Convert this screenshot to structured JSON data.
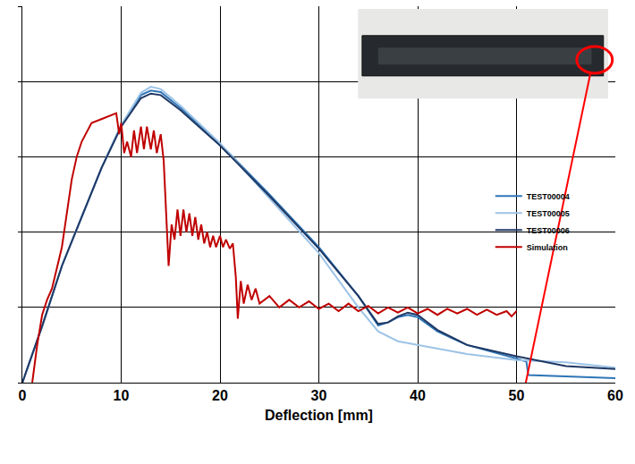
{
  "chart_data": {
    "type": "line",
    "x_label": "Deflection [mm]",
    "xlim": [
      0,
      60
    ],
    "xticks": [
      0,
      10,
      20,
      30,
      40,
      50,
      60
    ],
    "ylim": [
      0,
      5
    ],
    "yticks": [
      0,
      1,
      2,
      3,
      4,
      5
    ],
    "tick_labels": "x",
    "grid": true,
    "legend": "right",
    "series": [
      {
        "name": "TEST00004",
        "color": "#2e75b6",
        "x": [
          0,
          2,
          4,
          6,
          8,
          10,
          12,
          13,
          14,
          16,
          20,
          25,
          30,
          34,
          36,
          37,
          38,
          39,
          40,
          42,
          45,
          50,
          51,
          51.2,
          55,
          60
        ],
        "values": [
          0,
          0.75,
          1.55,
          2.2,
          2.85,
          3.42,
          3.82,
          3.88,
          3.86,
          3.65,
          3.17,
          2.5,
          1.8,
          1.15,
          0.76,
          0.8,
          0.87,
          0.9,
          0.87,
          0.68,
          0.5,
          0.32,
          0.28,
          0.1,
          0.08,
          0.06
        ]
      },
      {
        "name": "TEST00005",
        "color": "#9dc3e6",
        "x": [
          0,
          2,
          4,
          6,
          8,
          10,
          12,
          13,
          14,
          16,
          20,
          25,
          30,
          34,
          36,
          38,
          40,
          45,
          50,
          55,
          60
        ],
        "values": [
          0,
          0.75,
          1.55,
          2.2,
          2.85,
          3.42,
          3.85,
          3.93,
          3.9,
          3.68,
          3.18,
          2.45,
          1.72,
          1.0,
          0.68,
          0.55,
          0.5,
          0.38,
          0.3,
          0.27,
          0.2
        ]
      },
      {
        "name": "TEST00006",
        "color": "#1f3864",
        "x": [
          0,
          2,
          4,
          6,
          8,
          10,
          12,
          13,
          14,
          16,
          20,
          25,
          30,
          34,
          36,
          37,
          38,
          39,
          40,
          42,
          45,
          50,
          55,
          60
        ],
        "values": [
          0,
          0.75,
          1.55,
          2.2,
          2.85,
          3.4,
          3.78,
          3.84,
          3.82,
          3.62,
          3.15,
          2.48,
          1.78,
          1.15,
          0.78,
          0.8,
          0.88,
          0.93,
          0.9,
          0.7,
          0.5,
          0.35,
          0.22,
          0.18
        ]
      },
      {
        "name": "Simulation",
        "color": "#c00000",
        "x": [
          1,
          1.5,
          2,
          2.5,
          3,
          4,
          5,
          5.5,
          6,
          7,
          8,
          9,
          9.5,
          9.8,
          10,
          10.3,
          10.6,
          11,
          11.3,
          11.6,
          12,
          12.3,
          12.6,
          13,
          13.3,
          13.6,
          14,
          14.3,
          14.6,
          14.8,
          15.1,
          15.4,
          15.7,
          16,
          16.3,
          16.6,
          16.9,
          17.2,
          17.5,
          17.8,
          18.1,
          18.4,
          18.7,
          19,
          19.3,
          19.6,
          20,
          20.3,
          20.6,
          21,
          21.3,
          21.6,
          21.8,
          22.1,
          22.4,
          22.8,
          23.2,
          23.6,
          24,
          25,
          26,
          27,
          28,
          29,
          30,
          31,
          32,
          33,
          34,
          35,
          36,
          37,
          38,
          39,
          40,
          41,
          42,
          43,
          44,
          45,
          46,
          47,
          48,
          49,
          49.5,
          50
        ],
        "values": [
          0,
          0.5,
          0.9,
          1.1,
          1.25,
          1.8,
          2.7,
          3.0,
          3.2,
          3.45,
          3.5,
          3.55,
          3.58,
          3.3,
          3.45,
          3.05,
          3.2,
          3.0,
          3.35,
          3.05,
          3.4,
          3.1,
          3.4,
          3.1,
          3.35,
          3.05,
          3.3,
          2.95,
          2.1,
          1.55,
          2.1,
          1.9,
          2.3,
          1.95,
          2.3,
          2.0,
          2.25,
          1.95,
          2.2,
          1.9,
          2.1,
          1.85,
          2.0,
          1.8,
          1.95,
          1.8,
          1.95,
          1.8,
          1.9,
          1.78,
          1.85,
          1.4,
          0.85,
          1.35,
          1.05,
          1.3,
          1.1,
          1.25,
          1.05,
          1.15,
          1.0,
          1.1,
          1.0,
          1.08,
          0.98,
          1.05,
          0.95,
          1.05,
          0.95,
          1.02,
          0.92,
          1.0,
          0.93,
          1.0,
          0.92,
          0.98,
          0.9,
          0.98,
          0.92,
          0.98,
          0.9,
          0.97,
          0.9,
          0.95,
          0.88,
          0.95
        ]
      }
    ]
  }
}
